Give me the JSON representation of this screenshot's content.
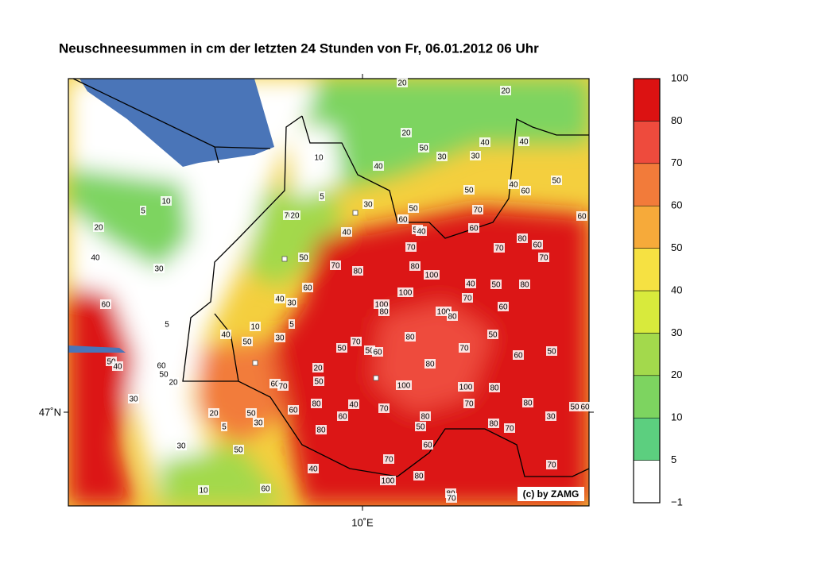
{
  "title": "Neuschneesummen in cm der letzten 24 Stunden von Fr, 06.01.2012 06 Uhr",
  "lat_label": "47˚N",
  "lon_label": "10˚E",
  "copyright": "(c) by ZAMG",
  "colorbar": {
    "levels": [
      {
        "value": -1,
        "label": "−1"
      },
      5,
      10,
      20,
      30,
      40,
      50,
      60,
      70,
      80,
      100
    ],
    "colors": [
      "#ffffff",
      "#5ccf7f",
      "#7dd460",
      "#a3d94c",
      "#d8ea3c",
      "#f6e142",
      "#f6aa3a",
      "#f27b3a",
      "#ee4b3d",
      "#dc1212"
    ]
  },
  "contour_labels": [
    20,
    20,
    20,
    50,
    30,
    40,
    40,
    30,
    10,
    40,
    5,
    10,
    5,
    30,
    50,
    50,
    70,
    40,
    60,
    50,
    60,
    20,
    70,
    20,
    60,
    50,
    40,
    60,
    40,
    40,
    30,
    50,
    70,
    80,
    70,
    80,
    100,
    70,
    80,
    60,
    70,
    60,
    40,
    30,
    100,
    40,
    50,
    80,
    60,
    100,
    80,
    70,
    60,
    100,
    80,
    5,
    5,
    10,
    40,
    30,
    50,
    50,
    50,
    70,
    50,
    60,
    80,
    70,
    60,
    50,
    50,
    40,
    60,
    50,
    20,
    20,
    50,
    80,
    60,
    70,
    100,
    100,
    80,
    80,
    40,
    70,
    60,
    60,
    70,
    80,
    50,
    60,
    30,
    20,
    50,
    30,
    5,
    80,
    50,
    80,
    70,
    30,
    80,
    30,
    50,
    60,
    70,
    70,
    40,
    80,
    100,
    10,
    60,
    80,
    70
  ]
}
